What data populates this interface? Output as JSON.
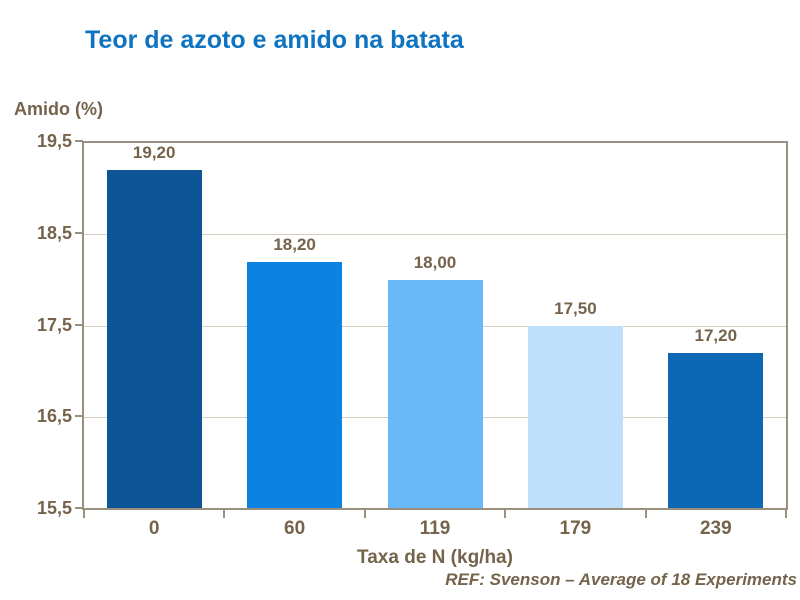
{
  "title": "Teor de azoto e amido na batata",
  "footer": "REF: Svenson – Average of 18 Experiments",
  "colors": {
    "title_blue": "#0E73C0",
    "text_brown": "#75634B",
    "axis": "#9A9080",
    "gridline": "#D5CDBF"
  },
  "chart_data": {
    "type": "bar",
    "title": "Teor de azoto e amido na batata",
    "categories": [
      "0",
      "60",
      "119",
      "179",
      "239"
    ],
    "values": [
      19.2,
      18.2,
      18.0,
      17.5,
      17.2
    ],
    "value_labels": [
      "19,20",
      "18,20",
      "18,00",
      "17,50",
      "17,20"
    ],
    "bar_colors": [
      "#0D5596",
      "#0A83E3",
      "#69B8F7",
      "#BFE0FA",
      "#0C68B5"
    ],
    "xlabel": "Taxa de N (kg/ha)",
    "ylabel": "Amido (%)",
    "ylim": [
      15.5,
      19.5
    ],
    "ytick_step": 1.0,
    "ytick_labels_top_to_bottom": [
      "19,5",
      "18,5",
      "17,5",
      "16,5",
      "15,5"
    ],
    "grid": true,
    "legend": false,
    "source_note": "REF: Svenson – Average of 18 Experiments"
  }
}
